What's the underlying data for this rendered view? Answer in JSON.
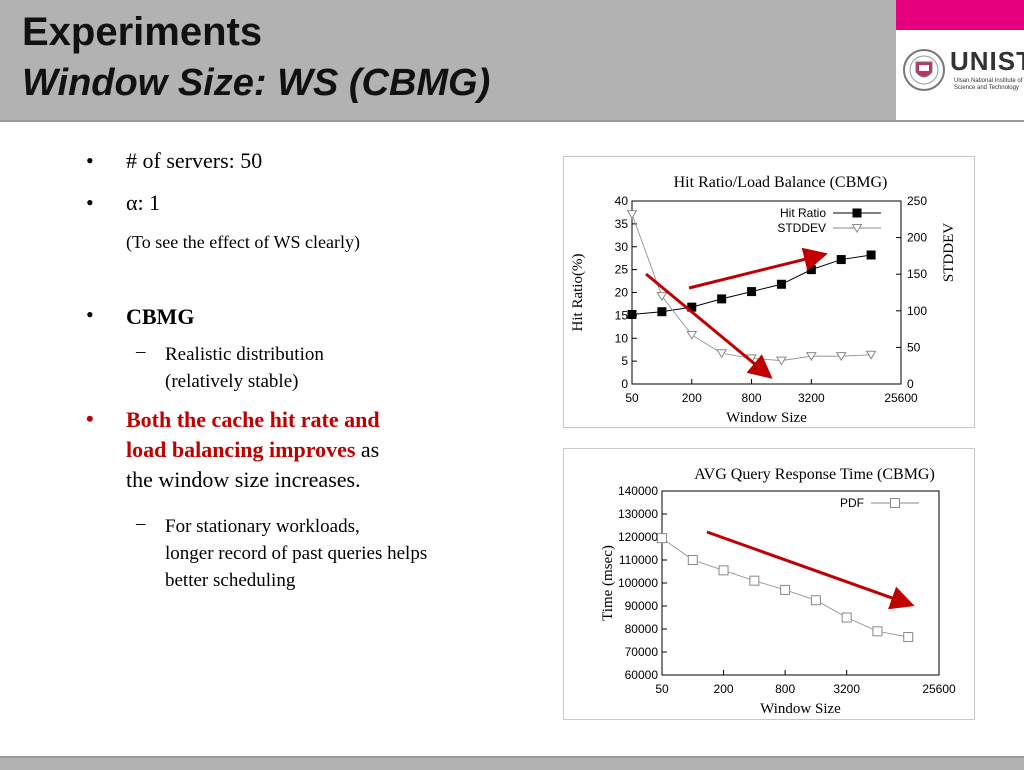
{
  "header": {
    "title": "Experiments",
    "subtitle": "Window Size: WS (CBMG)"
  },
  "logo": {
    "wordmark": "UNIST",
    "tagline": "Ulsan National Institute of Science and Technology",
    "brand_color": "#e6007e"
  },
  "bullets": {
    "servers": "# of servers: 50",
    "alpha": "α: 1",
    "alpha_note": "(To see the effect of WS clearly)",
    "cbmg": "CBMG",
    "cbmg_sub1": "Realistic distribution",
    "cbmg_sub2": "(relatively stable)",
    "conclusion_red1": "Both the cache hit rate and",
    "conclusion_red2": "load balancing improves",
    "conclusion_rest2": " as",
    "conclusion_rest3": "the window size increases.",
    "note1": "For stationary workloads,",
    "note2": "longer record of past queries helps",
    "note3": "better scheduling"
  },
  "chart_data": [
    {
      "type": "line",
      "title": "Hit Ratio/Load Balance (CBMG)",
      "xlabel": "Window Size",
      "ylabel": "Hit Ratio(%)",
      "y2label": "STDDEV",
      "x_ticks": [
        "50",
        "200",
        "800",
        "3200",
        "25600"
      ],
      "x_scale": "log",
      "ylim": [
        0,
        40
      ],
      "y_ticks": [
        0,
        5,
        10,
        15,
        20,
        25,
        30,
        35,
        40
      ],
      "y2lim": [
        0,
        250
      ],
      "y2_ticks": [
        0,
        50,
        100,
        150,
        200,
        250
      ],
      "x": [
        50,
        100,
        200,
        400,
        800,
        1600,
        3200,
        6400,
        12800
      ],
      "series": [
        {
          "name": "Hit Ratio",
          "axis": "left",
          "marker": "filled-square",
          "values": [
            15.2,
            15.8,
            16.8,
            18.6,
            20.2,
            21.8,
            25.0,
            27.2,
            28.2
          ]
        },
        {
          "name": "STDDEV",
          "axis": "right",
          "marker": "open-triangle-down",
          "values": [
            232,
            120,
            67,
            42,
            35,
            32,
            38,
            38,
            40
          ]
        }
      ],
      "legend_position": "top-right",
      "annotations": [
        "red arrow rising over Hit Ratio",
        "red arrow falling over STDDEV"
      ]
    },
    {
      "type": "line",
      "title": "AVG Query Response Time (CBMG)",
      "xlabel": "Window Size",
      "ylabel": "Time (msec)",
      "x_ticks": [
        "50",
        "200",
        "800",
        "3200",
        "25600"
      ],
      "x_scale": "log",
      "ylim": [
        60000,
        140000
      ],
      "y_ticks": [
        60000,
        70000,
        80000,
        90000,
        100000,
        110000,
        120000,
        130000,
        140000
      ],
      "x": [
        50,
        100,
        200,
        400,
        800,
        1600,
        3200,
        6400,
        12800
      ],
      "series": [
        {
          "name": "PDF",
          "marker": "open-square",
          "values": [
            119500,
            110000,
            105500,
            101000,
            97000,
            92500,
            85000,
            79000,
            76500
          ]
        }
      ],
      "legend_position": "top-right",
      "annotations": [
        "red arrow falling over PDF"
      ]
    }
  ],
  "colors": {
    "arrow": "#c00000",
    "header": "#b2b2b2",
    "conclusion": "#c00000"
  }
}
